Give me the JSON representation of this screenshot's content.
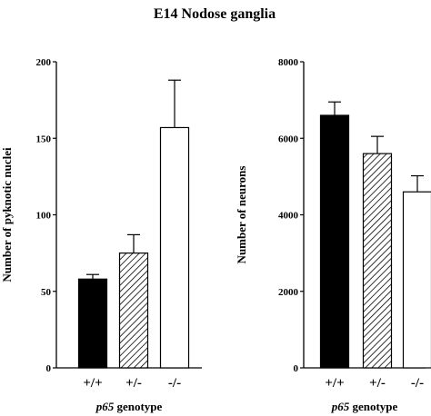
{
  "figure_title": "E14 Nodose ganglia",
  "chart_data": [
    {
      "type": "bar",
      "categories": [
        "+/+",
        "+/-",
        "-/-"
      ],
      "values": [
        58,
        75,
        157
      ],
      "error_upper": [
        61,
        87,
        188
      ],
      "fills": [
        "solid",
        "hatched",
        "open"
      ],
      "ylabel": "Number of pyknotic nuclei",
      "xlabel_italic": "p65",
      "xlabel_rest": " genotype",
      "ylim": [
        0,
        200
      ],
      "yticks": [
        0,
        50,
        100,
        150,
        200
      ]
    },
    {
      "type": "bar",
      "categories": [
        "+/+",
        "+/-",
        "-/-"
      ],
      "values": [
        6600,
        5600,
        4600
      ],
      "error_upper": [
        6950,
        6050,
        5020
      ],
      "fills": [
        "solid",
        "hatched",
        "open"
      ],
      "ylabel": "Number of neurons",
      "xlabel_italic": "p65",
      "xlabel_rest": " genotype",
      "ylim": [
        0,
        8000
      ],
      "yticks": [
        0,
        2000,
        4000,
        6000,
        8000
      ]
    }
  ]
}
